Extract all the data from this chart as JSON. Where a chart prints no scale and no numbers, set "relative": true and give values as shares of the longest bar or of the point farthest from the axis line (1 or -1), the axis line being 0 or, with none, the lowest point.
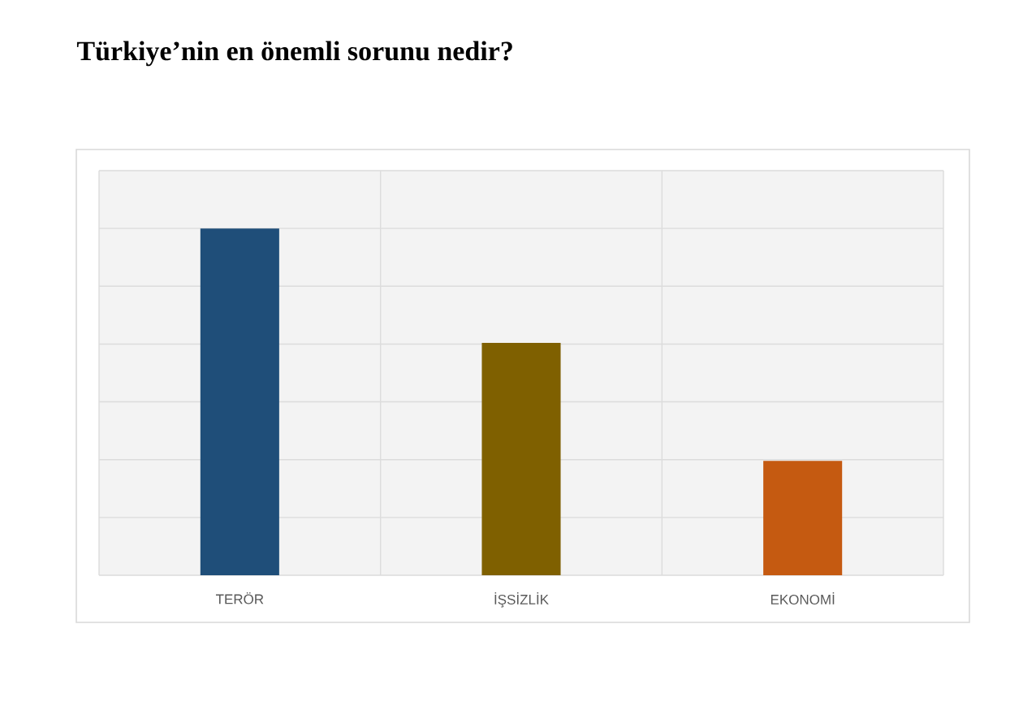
{
  "chart_data": {
    "type": "bar",
    "title": "Türkiye’nin en önemli sorunu nedir?",
    "categories": [
      "TERÖR",
      "İŞSİZLİK",
      "EKONOMİ"
    ],
    "values": [
      1,
      0.67,
      0.33
    ],
    "colors": [
      "#1f4e79",
      "#7f6000",
      "#c55a11"
    ],
    "relative": true,
    "grid": true
  }
}
